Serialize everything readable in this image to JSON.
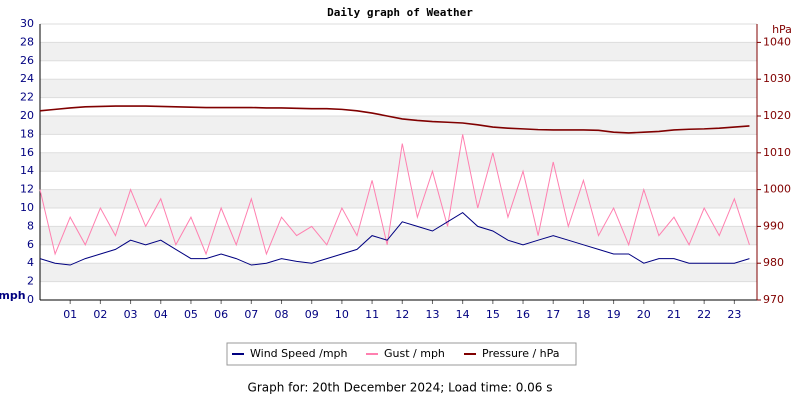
{
  "chart_data": {
    "type": "line",
    "title": "Daily graph of Weather",
    "y_label": "mph",
    "y2_label": "hPa",
    "x": [
      0,
      0.5,
      1,
      1.5,
      2,
      2.5,
      3,
      3.5,
      4,
      4.5,
      5,
      5.5,
      6,
      6.5,
      7,
      7.5,
      8,
      8.5,
      9,
      9.5,
      10,
      10.5,
      11,
      11.5,
      12,
      12.5,
      13,
      13.5,
      14,
      14.5,
      15,
      15.5,
      16,
      16.5,
      17,
      17.5,
      18,
      18.5,
      19,
      19.5,
      20,
      20.5,
      21,
      21.5,
      22,
      22.5,
      23,
      23.5
    ],
    "xlim": [
      0,
      23.75
    ],
    "xticks": [
      {
        "value": 1,
        "label": "01"
      },
      {
        "value": 2,
        "label": "02"
      },
      {
        "value": 3,
        "label": "03"
      },
      {
        "value": 4,
        "label": "04"
      },
      {
        "value": 5,
        "label": "05"
      },
      {
        "value": 6,
        "label": "06"
      },
      {
        "value": 7,
        "label": "07"
      },
      {
        "value": 8,
        "label": "08"
      },
      {
        "value": 9,
        "label": "09"
      },
      10,
      11,
      12,
      13,
      14,
      15,
      16,
      17,
      18,
      19,
      20,
      21,
      22,
      23
    ],
    "ylim": [
      0,
      30
    ],
    "yticks": [
      0,
      2,
      4,
      6,
      8,
      10,
      12,
      14,
      16,
      18,
      20,
      22,
      24,
      26,
      28,
      30
    ],
    "y2lim": [
      970,
      1045
    ],
    "y2ticks": [
      970,
      980,
      990,
      1000,
      1010,
      1020,
      1030,
      1040
    ],
    "grid": true,
    "series": [
      {
        "name": "Wind Speed /mph",
        "color": "#000080",
        "values": [
          4.5,
          4,
          3.8,
          4.5,
          5,
          5.5,
          6.5,
          6,
          6.5,
          5.5,
          4.5,
          4.5,
          5,
          4.5,
          3.8,
          4,
          4.5,
          4.2,
          4,
          4.5,
          5,
          5.5,
          7,
          6.5,
          8.5,
          8,
          7.5,
          8.5,
          9.5,
          8,
          7.5,
          6.5,
          6,
          6.5,
          7,
          6.5,
          6,
          5.5,
          5,
          5,
          4,
          4.5,
          4.5,
          4,
          4,
          4,
          4,
          4.5
        ]
      },
      {
        "name": "Gust / mph",
        "color": "#ff80b0",
        "values": [
          12,
          5,
          9,
          6,
          10,
          7,
          12,
          8,
          11,
          6,
          9,
          5,
          10,
          6,
          11,
          5,
          9,
          7,
          8,
          6,
          10,
          7,
          13,
          6,
          17,
          9,
          14,
          8,
          18,
          10,
          16,
          9,
          14,
          7,
          15,
          8,
          13,
          7,
          10,
          6,
          12,
          7,
          9,
          6,
          10,
          7,
          11,
          6
        ]
      },
      {
        "name": "Pressure / hPa",
        "color": "#800000",
        "axis": "y2",
        "values": [
          1021.4,
          1021.8,
          1022.2,
          1022.5,
          1022.6,
          1022.7,
          1022.7,
          1022.7,
          1022.6,
          1022.5,
          1022.4,
          1022.3,
          1022.3,
          1022.3,
          1022.3,
          1022.2,
          1022.2,
          1022.1,
          1022,
          1022,
          1021.8,
          1021.4,
          1020.8,
          1020,
          1019.2,
          1018.8,
          1018.5,
          1018.3,
          1018.1,
          1017.6,
          1017,
          1016.7,
          1016.5,
          1016.3,
          1016.2,
          1016.2,
          1016.2,
          1016.1,
          1015.6,
          1015.4,
          1015.6,
          1015.8,
          1016.2,
          1016.4,
          1016.5,
          1016.7,
          1017,
          1017.3
        ]
      }
    ],
    "footer": "Graph for: 20th December 2024; Load time: 0.06 s"
  }
}
